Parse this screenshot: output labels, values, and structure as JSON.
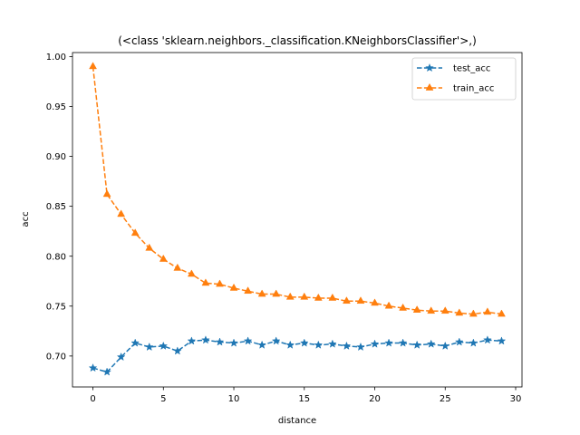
{
  "chart_data": {
    "type": "line",
    "title": "(<class 'sklearn.neighbors._classification.KNeighborsClassifier'>,)",
    "xlabel": "distance",
    "ylabel": "acc",
    "xlim": [
      -1.45,
      30.45
    ],
    "ylim": [
      0.669,
      1.004
    ],
    "xticks": [
      0,
      5,
      10,
      15,
      20,
      25,
      30
    ],
    "yticks": [
      0.7,
      0.75,
      0.8,
      0.85,
      0.9,
      0.95,
      1.0
    ],
    "ytick_labels": [
      "0.70",
      "0.75",
      "0.80",
      "0.85",
      "0.90",
      "0.95",
      "1.00"
    ],
    "grid": false,
    "legend_position": "top-right",
    "x": [
      0,
      1,
      2,
      3,
      4,
      5,
      6,
      7,
      8,
      9,
      10,
      11,
      12,
      13,
      14,
      15,
      16,
      17,
      18,
      19,
      20,
      21,
      22,
      23,
      24,
      25,
      26,
      27,
      28,
      29
    ],
    "series": [
      {
        "name": "test_acc",
        "color": "#1f77b4",
        "marker": "star",
        "linestyle": "dashed",
        "values": [
          0.688,
          0.684,
          0.699,
          0.713,
          0.709,
          0.71,
          0.705,
          0.715,
          0.716,
          0.714,
          0.713,
          0.715,
          0.711,
          0.715,
          0.711,
          0.713,
          0.711,
          0.712,
          0.71,
          0.709,
          0.712,
          0.713,
          0.713,
          0.711,
          0.712,
          0.71,
          0.714,
          0.713,
          0.716,
          0.715
        ]
      },
      {
        "name": "train_acc",
        "color": "#ff7f0e",
        "marker": "triangle-up",
        "linestyle": "dashed",
        "values": [
          0.99,
          0.862,
          0.842,
          0.823,
          0.808,
          0.797,
          0.788,
          0.782,
          0.773,
          0.772,
          0.768,
          0.765,
          0.762,
          0.762,
          0.759,
          0.759,
          0.758,
          0.758,
          0.755,
          0.755,
          0.753,
          0.75,
          0.748,
          0.746,
          0.745,
          0.745,
          0.743,
          0.742,
          0.744,
          0.742
        ]
      }
    ]
  }
}
